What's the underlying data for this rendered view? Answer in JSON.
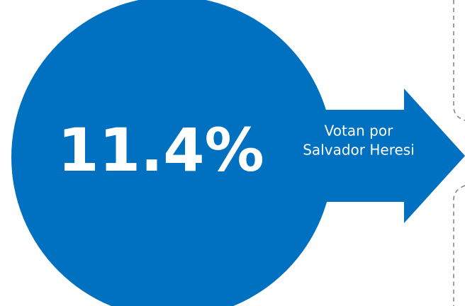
{
  "stat": {
    "value_label": "11.4%",
    "caption": [
      "Votan por",
      "Salvador Heresi"
    ]
  }
}
